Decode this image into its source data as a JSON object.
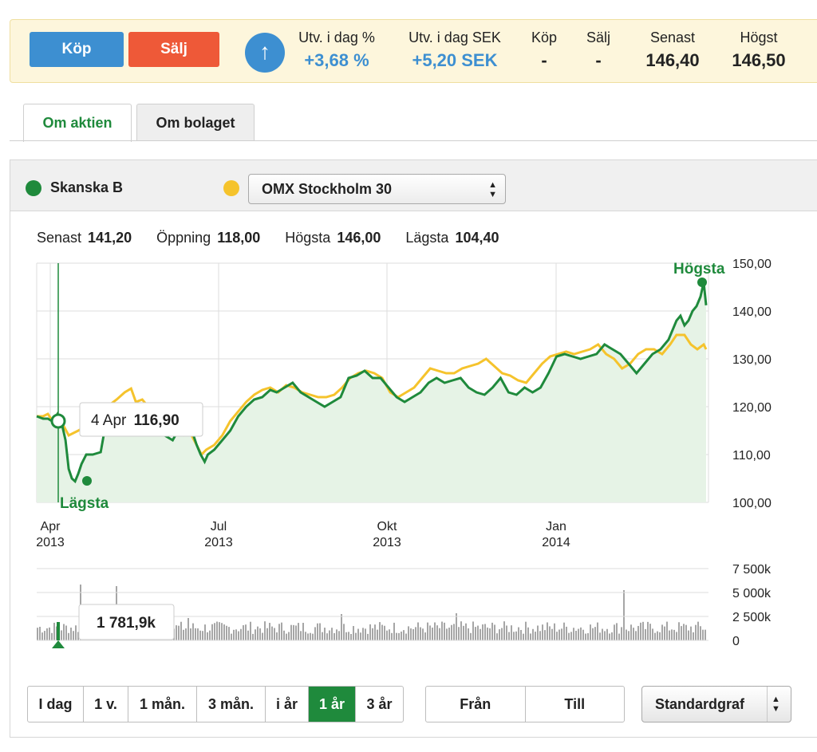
{
  "topbar": {
    "buy_label": "Köp",
    "sell_label": "Sälj",
    "stats": [
      {
        "label": "Utv. i dag %",
        "value": "+3,68 %",
        "color": "blue"
      },
      {
        "label": "Utv. i dag SEK",
        "value": "+5,20 SEK",
        "color": "blue"
      },
      {
        "label": "Köp",
        "value": "-"
      },
      {
        "label": "Sälj",
        "value": "-"
      },
      {
        "label": "Senast",
        "value": "146,40"
      },
      {
        "label": "Högst",
        "value": "146,50"
      }
    ]
  },
  "tabs": [
    {
      "label": "Om aktien",
      "active": true
    },
    {
      "label": "Om bolaget",
      "active": false
    }
  ],
  "chart_panel": {
    "series_name": "Skanska B",
    "compare_select": "OMX Stockholm 30",
    "summary": [
      {
        "label": "Senast",
        "value": "141,20"
      },
      {
        "label": "Öppning",
        "value": "118,00"
      },
      {
        "label": "Högsta",
        "value": "146,00"
      },
      {
        "label": "Lägsta",
        "value": "104,40"
      }
    ],
    "tooltip_date": "4 Apr",
    "tooltip_value": "116,90",
    "volume_tooltip": "1 781,9k",
    "high_label": "Högsta",
    "low_label": "Lägsta"
  },
  "chart_data": {
    "type": "line",
    "x_ticks": [
      {
        "top": "Apr",
        "bottom": "2013"
      },
      {
        "top": "Jul",
        "bottom": "2013"
      },
      {
        "top": "Okt",
        "bottom": "2013"
      },
      {
        "top": "Jan",
        "bottom": "2014"
      }
    ],
    "y_ticks": [
      "150,00",
      "140,00",
      "130,00",
      "120,00",
      "110,00",
      "100,00"
    ],
    "ylim": [
      100,
      150
    ],
    "volume_ticks": [
      "7 500k",
      "5 000k",
      "2 500k",
      "0"
    ],
    "volume_ylim": [
      0,
      7500
    ],
    "colors": {
      "primary": "#1f8a3c",
      "compare": "#f5c32c",
      "fill": "#e6f3e6"
    },
    "series": [
      {
        "name": "Skanska B",
        "color": "#1f8a3c",
        "points": [
          [
            0,
            118
          ],
          [
            8,
            117.5
          ],
          [
            14,
            117.5
          ],
          [
            20,
            116.9
          ],
          [
            26,
            118.5
          ],
          [
            32,
            116
          ],
          [
            36,
            113
          ],
          [
            40,
            107
          ],
          [
            44,
            105
          ],
          [
            48,
            104.4
          ],
          [
            52,
            106
          ],
          [
            56,
            108
          ],
          [
            62,
            110
          ],
          [
            70,
            110
          ],
          [
            80,
            110.5
          ],
          [
            88,
            118
          ],
          [
            96,
            119
          ],
          [
            104,
            119.5
          ],
          [
            112,
            118
          ],
          [
            120,
            117
          ],
          [
            130,
            118.5
          ],
          [
            140,
            117
          ],
          [
            150,
            116
          ],
          [
            160,
            114
          ],
          [
            170,
            113
          ],
          [
            180,
            116
          ],
          [
            192,
            116
          ],
          [
            200,
            112
          ],
          [
            205,
            110
          ],
          [
            210,
            108.5
          ],
          [
            214,
            110
          ],
          [
            222,
            111
          ],
          [
            232,
            113
          ],
          [
            242,
            115
          ],
          [
            252,
            118
          ],
          [
            262,
            120
          ],
          [
            272,
            121.5
          ],
          [
            282,
            122
          ],
          [
            292,
            123.5
          ],
          [
            300,
            123
          ],
          [
            310,
            124
          ],
          [
            320,
            125
          ],
          [
            330,
            123
          ],
          [
            340,
            122
          ],
          [
            350,
            121
          ],
          [
            360,
            120
          ],
          [
            370,
            121
          ],
          [
            380,
            122
          ],
          [
            390,
            126
          ],
          [
            400,
            126.5
          ],
          [
            410,
            127.5
          ],
          [
            420,
            126
          ],
          [
            430,
            126
          ],
          [
            440,
            124
          ],
          [
            450,
            122
          ],
          [
            460,
            121
          ],
          [
            470,
            122
          ],
          [
            480,
            123
          ],
          [
            490,
            125
          ],
          [
            500,
            126
          ],
          [
            510,
            125
          ],
          [
            520,
            125.5
          ],
          [
            530,
            126
          ],
          [
            540,
            124
          ],
          [
            550,
            123
          ],
          [
            560,
            122.5
          ],
          [
            570,
            124
          ],
          [
            580,
            126
          ],
          [
            590,
            123
          ],
          [
            600,
            122.5
          ],
          [
            610,
            124
          ],
          [
            620,
            123
          ],
          [
            630,
            124
          ],
          [
            640,
            127
          ],
          [
            650,
            130.5
          ],
          [
            660,
            131
          ],
          [
            670,
            130.5
          ],
          [
            680,
            130
          ],
          [
            690,
            130.5
          ],
          [
            700,
            131
          ],
          [
            710,
            133
          ],
          [
            720,
            132
          ],
          [
            730,
            131
          ],
          [
            740,
            129
          ],
          [
            750,
            127
          ],
          [
            760,
            129
          ],
          [
            770,
            131
          ],
          [
            780,
            132
          ],
          [
            790,
            134
          ],
          [
            800,
            138
          ],
          [
            805,
            139
          ],
          [
            810,
            137
          ],
          [
            815,
            138
          ],
          [
            820,
            140
          ],
          [
            825,
            141
          ],
          [
            830,
            143
          ],
          [
            834,
            146
          ],
          [
            837,
            141.2
          ]
        ]
      },
      {
        "name": "OMX Stockholm 30",
        "color": "#f5c32c",
        "points": [
          [
            0,
            118
          ],
          [
            8,
            118
          ],
          [
            14,
            118.5
          ],
          [
            20,
            117
          ],
          [
            26,
            118.5
          ],
          [
            32,
            116.5
          ],
          [
            40,
            114
          ],
          [
            52,
            115
          ],
          [
            62,
            116
          ],
          [
            72,
            117
          ],
          [
            82,
            119
          ],
          [
            92,
            120.5
          ],
          [
            100,
            121.5
          ],
          [
            110,
            123
          ],
          [
            118,
            123.8
          ],
          [
            124,
            121
          ],
          [
            132,
            121.5
          ],
          [
            142,
            119.5
          ],
          [
            150,
            118
          ],
          [
            160,
            116
          ],
          [
            172,
            115
          ],
          [
            184,
            114
          ],
          [
            192,
            114.5
          ],
          [
            200,
            112
          ],
          [
            206,
            110
          ],
          [
            212,
            111
          ],
          [
            222,
            112
          ],
          [
            232,
            114
          ],
          [
            242,
            117
          ],
          [
            252,
            119
          ],
          [
            262,
            121
          ],
          [
            272,
            122.5
          ],
          [
            282,
            123.5
          ],
          [
            292,
            124
          ],
          [
            302,
            123
          ],
          [
            312,
            124.5
          ],
          [
            322,
            124
          ],
          [
            332,
            123
          ],
          [
            342,
            122.5
          ],
          [
            352,
            122
          ],
          [
            362,
            122
          ],
          [
            372,
            122.5
          ],
          [
            382,
            124
          ],
          [
            392,
            126
          ],
          [
            402,
            127
          ],
          [
            412,
            127.5
          ],
          [
            422,
            127
          ],
          [
            432,
            126
          ],
          [
            442,
            123
          ],
          [
            452,
            122
          ],
          [
            462,
            123
          ],
          [
            472,
            124
          ],
          [
            482,
            126
          ],
          [
            492,
            128
          ],
          [
            502,
            127.5
          ],
          [
            512,
            127
          ],
          [
            522,
            127
          ],
          [
            532,
            128
          ],
          [
            542,
            128.5
          ],
          [
            552,
            129
          ],
          [
            562,
            130
          ],
          [
            572,
            128.5
          ],
          [
            582,
            127
          ],
          [
            592,
            126.5
          ],
          [
            602,
            125.5
          ],
          [
            612,
            125
          ],
          [
            622,
            127
          ],
          [
            632,
            129
          ],
          [
            642,
            130.5
          ],
          [
            652,
            131
          ],
          [
            662,
            131.5
          ],
          [
            672,
            131
          ],
          [
            682,
            131.5
          ],
          [
            692,
            132
          ],
          [
            702,
            133
          ],
          [
            712,
            131
          ],
          [
            722,
            130
          ],
          [
            732,
            128
          ],
          [
            742,
            129
          ],
          [
            752,
            131
          ],
          [
            762,
            132
          ],
          [
            772,
            132
          ],
          [
            782,
            131
          ],
          [
            792,
            133
          ],
          [
            800,
            135
          ],
          [
            810,
            135
          ],
          [
            818,
            133
          ],
          [
            826,
            132
          ],
          [
            834,
            133
          ],
          [
            837,
            132
          ]
        ]
      }
    ]
  }
}
